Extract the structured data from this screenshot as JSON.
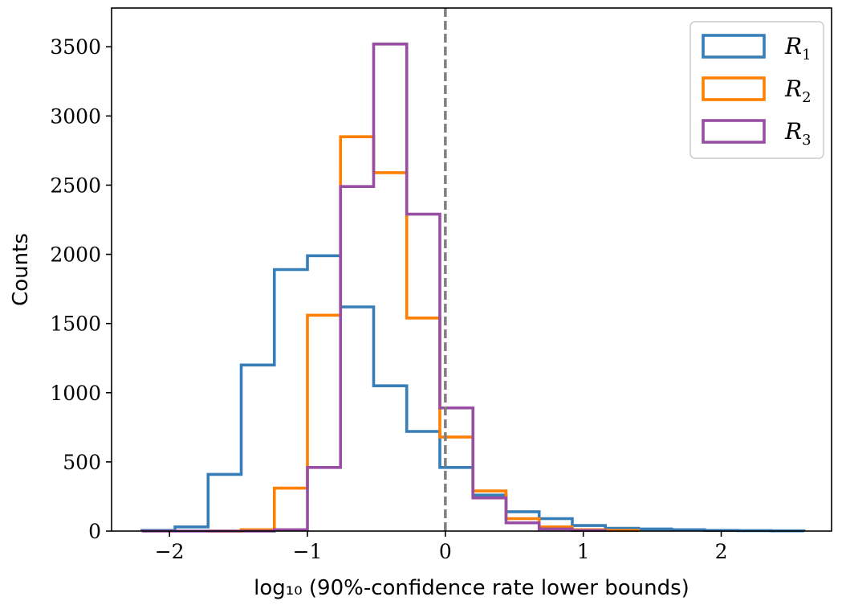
{
  "chart_data": {
    "type": "histogram",
    "xlabel": "log₁₀ (90%-confidence rate lower bounds)",
    "ylabel": "Counts",
    "xlim": [
      -2.42,
      2.8
    ],
    "ylim": [
      0,
      3780
    ],
    "xticks": [
      -2,
      -1,
      0,
      1,
      2
    ],
    "xtick_labels": [
      "−2",
      "−1",
      "0",
      "1",
      "2"
    ],
    "yticks": [
      0,
      500,
      1000,
      1500,
      2000,
      2500,
      3000,
      3500
    ],
    "ytick_labels": [
      "0",
      "500",
      "1000",
      "1500",
      "2000",
      "2500",
      "3000",
      "3500"
    ],
    "reference_line_x": 0,
    "legend_position": "top-right",
    "series": [
      {
        "name": "R",
        "subscript": "1",
        "color": "#377eb8",
        "bin_edges": [
          -2.2,
          -1.96,
          -1.72,
          -1.48,
          -1.24,
          -1.0,
          -0.76,
          -0.52,
          -0.28,
          -0.04,
          0.2,
          0.44,
          0.68,
          0.92,
          1.16,
          1.4,
          1.64,
          1.88,
          2.12,
          2.36,
          2.6
        ],
        "counts": [
          5,
          30,
          410,
          1200,
          1890,
          1990,
          1620,
          1050,
          720,
          460,
          260,
          140,
          90,
          40,
          20,
          15,
          10,
          5,
          3,
          2
        ]
      },
      {
        "name": "R",
        "subscript": "2",
        "color": "#ff7f00",
        "bin_edges": [
          -1.72,
          -1.48,
          -1.24,
          -1.0,
          -0.76,
          -0.52,
          -0.28,
          -0.04,
          0.2,
          0.44,
          0.68,
          0.92,
          1.16,
          1.4
        ],
        "counts": [
          0,
          10,
          310,
          1560,
          2850,
          2590,
          1540,
          680,
          290,
          90,
          30,
          10,
          5
        ]
      },
      {
        "name": "R",
        "subscript": "3",
        "color": "#984ea3",
        "bin_edges": [
          -2.2,
          -1.96,
          -1.72,
          -1.48,
          -1.24,
          -1.0,
          -0.76,
          -0.52,
          -0.28,
          -0.04,
          0.2,
          0.44,
          0.68,
          0.92,
          1.16
        ],
        "counts": [
          0,
          0,
          0,
          0,
          10,
          460,
          2490,
          3520,
          2290,
          890,
          240,
          60,
          15,
          5
        ]
      }
    ]
  }
}
